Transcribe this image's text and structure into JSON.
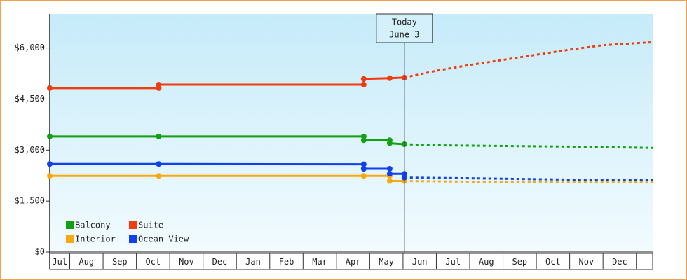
{
  "chart_data": {
    "type": "line",
    "ylim": [
      0,
      7000
    ],
    "yticks": [
      {
        "value": 0,
        "label": "$0"
      },
      {
        "value": 1500,
        "label": "$1,500"
      },
      {
        "value": 3000,
        "label": "$3,000"
      },
      {
        "value": 4500,
        "label": "$4,500"
      },
      {
        "value": 6000,
        "label": "$6,000"
      }
    ],
    "xlim": [
      0.4,
      18.49
    ],
    "categories": [
      "Jul",
      "Aug",
      "Sep",
      "Oct",
      "Nov",
      "Dec",
      "Jan",
      "Feb",
      "Mar",
      "Apr",
      "May",
      "Jun",
      "Jul",
      "Aug",
      "Sep",
      "Oct",
      "Nov",
      "Dec"
    ],
    "today": {
      "x": 11.04,
      "label": [
        "Today",
        "June 3"
      ]
    },
    "series": [
      {
        "name": "Balcony",
        "color": "#13a013",
        "x": [
          0.4,
          3.67,
          9.82,
          9.82,
          10.6,
          10.6,
          11.04
        ],
        "values": [
          3400,
          3400,
          3400,
          3290,
          3290,
          3200,
          3170
        ],
        "forecast_x": [
          11.04,
          12,
          14,
          16,
          18.49
        ],
        "forecast_values": [
          3170,
          3140,
          3120,
          3100,
          3062
        ]
      },
      {
        "name": "Suite",
        "color": "#f03c10",
        "x": [
          0.4,
          3.67,
          3.67,
          9.82,
          9.82,
          10.6,
          11.04
        ],
        "values": [
          4820,
          4820,
          4920,
          4920,
          5090,
          5110,
          5130
        ],
        "forecast_x": [
          11.04,
          12,
          13,
          14,
          15,
          16,
          17,
          18.49
        ],
        "forecast_values": [
          5130,
          5330,
          5500,
          5650,
          5800,
          5950,
          6080,
          6170
        ]
      },
      {
        "name": "Interior",
        "color": "#f8a810",
        "x": [
          0.4,
          3.67,
          9.82,
          10.6,
          10.6,
          11.04
        ],
        "values": [
          2240,
          2240,
          2240,
          2240,
          2090,
          2090
        ],
        "forecast_x": [
          11.04,
          13,
          16,
          18.49
        ],
        "forecast_values": [
          2090,
          2070,
          2060,
          2048
        ]
      },
      {
        "name": "Ocean View",
        "color": "#1040f0",
        "x": [
          0.4,
          3.67,
          9.82,
          9.82,
          10.6,
          10.6,
          11.04,
          11.04
        ],
        "values": [
          2590,
          2590,
          2580,
          2450,
          2450,
          2300,
          2300,
          2190
        ],
        "forecast_x": [
          11.04,
          13,
          16,
          18.49
        ],
        "forecast_values": [
          2190,
          2170,
          2130,
          2110
        ]
      }
    ]
  }
}
